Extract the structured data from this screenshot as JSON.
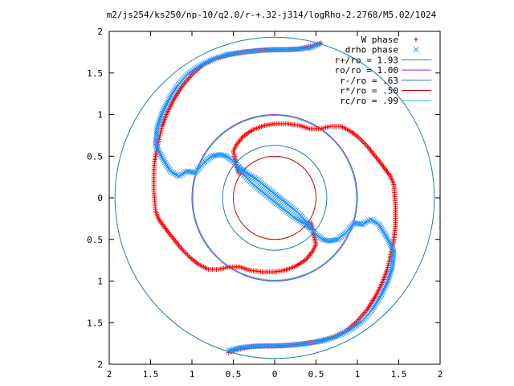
{
  "chart_data": {
    "type": "scatter",
    "title": "m2/js254/ks250/np-10/q2.0/r-+.32-j314/logRho-2.2768/M5.02/1024",
    "xlabel": "",
    "ylabel": "",
    "xlim": [
      -2,
      2
    ],
    "ylim": [
      -2,
      2
    ],
    "x_tick_labels": [
      "2",
      "1.5",
      "1",
      "0.5",
      "0",
      "0.5",
      "1",
      "1.5",
      "2"
    ],
    "y_tick_labels": [
      "2",
      "1.5",
      "1",
      "0.5",
      "0",
      "0.5",
      "1",
      "1.5",
      "2"
    ],
    "x_tick_values": [
      -2,
      -1.5,
      -1,
      -0.5,
      0,
      0.5,
      1,
      1.5,
      2
    ],
    "y_tick_values": [
      2,
      1.5,
      1,
      0.5,
      0,
      -0.5,
      -1,
      -1.5,
      -2
    ],
    "grid": false,
    "legend_position": "top-right",
    "series": [
      {
        "name": "W phase",
        "marker": "+",
        "color": "#ff0000",
        "points": [
          [
            -0.44,
            0.3
          ],
          [
            -0.46,
            0.38
          ],
          [
            -0.48,
            0.48
          ],
          [
            -0.5,
            0.56
          ],
          [
            -0.46,
            0.64
          ],
          [
            -0.38,
            0.74
          ],
          [
            -0.26,
            0.82
          ],
          [
            -0.12,
            0.87
          ],
          [
            0.0,
            0.89
          ],
          [
            0.15,
            0.89
          ],
          [
            0.3,
            0.87
          ],
          [
            0.42,
            0.83
          ],
          [
            0.55,
            0.83
          ],
          [
            0.68,
            0.86
          ],
          [
            0.8,
            0.86
          ],
          [
            0.92,
            0.8
          ],
          [
            1.02,
            0.72
          ],
          [
            1.12,
            0.62
          ],
          [
            1.2,
            0.52
          ],
          [
            1.28,
            0.42
          ],
          [
            1.34,
            0.34
          ],
          [
            1.4,
            0.26
          ],
          [
            1.44,
            0.16
          ],
          [
            1.45,
            0.04
          ],
          [
            1.46,
            -0.08
          ],
          [
            1.46,
            -0.2
          ],
          [
            1.46,
            -0.32
          ],
          [
            1.45,
            -0.44
          ],
          [
            1.43,
            -0.56
          ],
          [
            1.4,
            -0.7
          ],
          [
            1.36,
            -0.86
          ],
          [
            1.3,
            -1.02
          ],
          [
            1.22,
            -1.18
          ],
          [
            1.12,
            -1.34
          ],
          [
            1.0,
            -1.48
          ],
          [
            0.86,
            -1.6
          ],
          [
            0.7,
            -1.68
          ],
          [
            0.5,
            -1.73
          ],
          [
            0.3,
            -1.76
          ],
          [
            0.1,
            -1.78
          ],
          [
            -0.1,
            -1.78
          ],
          [
            -0.3,
            -1.79
          ],
          [
            -0.5,
            -1.84
          ],
          [
            -0.56,
            -1.86
          ],
          [
            0.44,
            -0.3
          ],
          [
            0.46,
            -0.38
          ],
          [
            0.48,
            -0.48
          ],
          [
            0.5,
            -0.56
          ],
          [
            0.46,
            -0.64
          ],
          [
            0.38,
            -0.74
          ],
          [
            0.26,
            -0.82
          ],
          [
            0.12,
            -0.87
          ],
          [
            0.0,
            -0.89
          ],
          [
            -0.15,
            -0.89
          ],
          [
            -0.3,
            -0.87
          ],
          [
            -0.42,
            -0.83
          ],
          [
            -0.55,
            -0.83
          ],
          [
            -0.68,
            -0.86
          ],
          [
            -0.8,
            -0.86
          ],
          [
            -0.92,
            -0.8
          ],
          [
            -1.02,
            -0.72
          ],
          [
            -1.12,
            -0.62
          ],
          [
            -1.2,
            -0.52
          ],
          [
            -1.28,
            -0.42
          ],
          [
            -1.34,
            -0.34
          ],
          [
            -1.4,
            -0.26
          ],
          [
            -1.44,
            -0.16
          ],
          [
            -1.45,
            -0.04
          ],
          [
            -1.46,
            0.08
          ],
          [
            -1.46,
            0.2
          ],
          [
            -1.46,
            0.32
          ],
          [
            -1.45,
            0.44
          ],
          [
            -1.43,
            0.56
          ],
          [
            -1.4,
            0.7
          ],
          [
            -1.36,
            0.86
          ],
          [
            -1.3,
            1.02
          ],
          [
            -1.22,
            1.18
          ],
          [
            -1.12,
            1.34
          ],
          [
            -1.0,
            1.48
          ],
          [
            -0.86,
            1.6
          ],
          [
            -0.7,
            1.68
          ],
          [
            -0.5,
            1.73
          ],
          [
            -0.3,
            1.76
          ],
          [
            -0.1,
            1.78
          ],
          [
            0.1,
            1.78
          ],
          [
            0.3,
            1.79
          ],
          [
            0.5,
            1.84
          ],
          [
            0.56,
            1.86
          ]
        ]
      },
      {
        "name": "drho phase",
        "marker": "x",
        "color": "#1e90ff",
        "points": [
          [
            -0.44,
            0.36
          ],
          [
            -0.36,
            0.26
          ],
          [
            -0.26,
            0.16
          ],
          [
            -0.16,
            0.08
          ],
          [
            -0.06,
            0.0
          ],
          [
            0.04,
            -0.08
          ],
          [
            0.14,
            -0.16
          ],
          [
            0.24,
            -0.24
          ],
          [
            0.34,
            -0.3
          ],
          [
            0.42,
            -0.36
          ],
          [
            0.5,
            -0.44
          ],
          [
            0.58,
            -0.5
          ],
          [
            0.66,
            -0.52
          ],
          [
            0.76,
            -0.5
          ],
          [
            0.86,
            -0.42
          ],
          [
            0.96,
            -0.3
          ],
          [
            1.06,
            -0.32
          ],
          [
            1.16,
            -0.26
          ],
          [
            1.26,
            -0.32
          ],
          [
            1.36,
            -0.48
          ],
          [
            1.44,
            -0.64
          ],
          [
            1.42,
            -0.84
          ],
          [
            1.36,
            -1.02
          ],
          [
            1.28,
            -1.18
          ],
          [
            1.18,
            -1.34
          ],
          [
            1.06,
            -1.48
          ],
          [
            0.92,
            -1.58
          ],
          [
            0.76,
            -1.66
          ],
          [
            0.58,
            -1.72
          ],
          [
            0.38,
            -1.75
          ],
          [
            0.18,
            -1.77
          ],
          [
            -0.02,
            -1.78
          ],
          [
            -0.22,
            -1.78
          ],
          [
            -0.42,
            -1.8
          ],
          [
            -0.56,
            -1.84
          ],
          [
            0.44,
            -0.36
          ],
          [
            0.36,
            -0.26
          ],
          [
            0.26,
            -0.16
          ],
          [
            0.16,
            -0.08
          ],
          [
            0.06,
            0.0
          ],
          [
            -0.04,
            0.08
          ],
          [
            -0.14,
            0.16
          ],
          [
            -0.24,
            0.24
          ],
          [
            -0.34,
            0.3
          ],
          [
            -0.42,
            0.36
          ],
          [
            -0.5,
            0.44
          ],
          [
            -0.58,
            0.5
          ],
          [
            -0.66,
            0.52
          ],
          [
            -0.76,
            0.5
          ],
          [
            -0.86,
            0.42
          ],
          [
            -0.96,
            0.3
          ],
          [
            -1.06,
            0.32
          ],
          [
            -1.16,
            0.26
          ],
          [
            -1.26,
            0.32
          ],
          [
            -1.36,
            0.48
          ],
          [
            -1.44,
            0.64
          ],
          [
            -1.42,
            0.84
          ],
          [
            -1.36,
            1.02
          ],
          [
            -1.28,
            1.18
          ],
          [
            -1.18,
            1.34
          ],
          [
            -1.06,
            1.48
          ],
          [
            -0.92,
            1.58
          ],
          [
            -0.76,
            1.66
          ],
          [
            -0.58,
            1.72
          ],
          [
            -0.38,
            1.75
          ],
          [
            -0.18,
            1.77
          ],
          [
            0.02,
            1.78
          ],
          [
            0.22,
            1.78
          ],
          [
            0.42,
            1.8
          ],
          [
            0.54,
            1.85
          ]
        ]
      }
    ],
    "circles": [
      {
        "name": "r+/ro = 1.93",
        "radius": 1.93,
        "color": "#1e7bbf"
      },
      {
        "name": "ro/ro = 1.00",
        "radius": 1.0,
        "color": "#8a2be2"
      },
      {
        "name": "r-/ro = .63",
        "radius": 0.63,
        "color": "#1e7bbf"
      },
      {
        "name": "r*/ro = .50",
        "radius": 0.5,
        "color": "#cc0000"
      },
      {
        "name": "rc/ro = .99",
        "radius": 0.99,
        "color": "#22b8d0"
      }
    ]
  }
}
